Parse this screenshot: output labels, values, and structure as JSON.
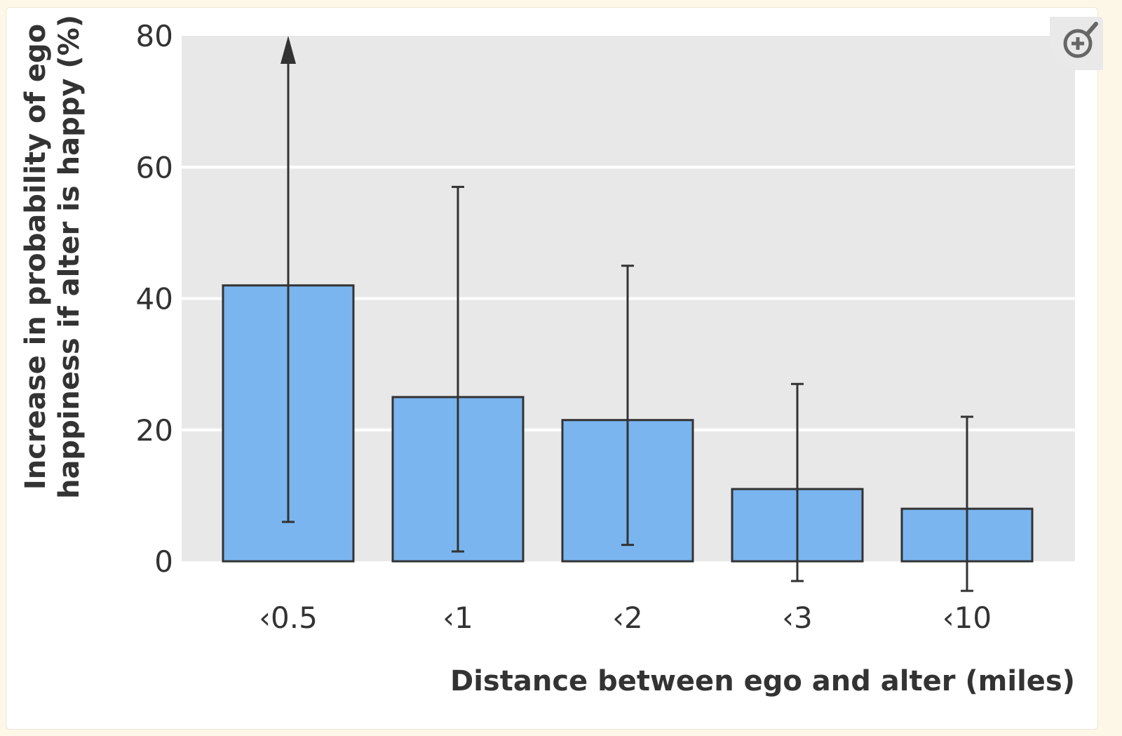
{
  "chart_data": {
    "type": "bar",
    "categories": [
      "‹0.5",
      "‹1",
      "‹2",
      "‹3",
      "‹10"
    ],
    "values": [
      42,
      25,
      21.5,
      11,
      8
    ],
    "error_low": [
      6,
      1.5,
      2.5,
      -3,
      -4.5
    ],
    "error_high": [
      80,
      57,
      45,
      27,
      22
    ],
    "error_truncated_above": [
      true,
      false,
      false,
      false,
      false
    ],
    "ylabel_line1": "Increase in probability of ego",
    "ylabel_line2": "happiness if alter is happy (%)",
    "xlabel": "Distance between ego and alter (miles)",
    "ylim": [
      0,
      80
    ],
    "yticks": [
      0,
      20,
      40,
      60,
      80
    ],
    "grid": true,
    "colors": {
      "bar": "#7ab5ef",
      "bar_edge": "#333333",
      "plot_bg": "#e8e8e8",
      "gridline": "#ffffff",
      "error": "#333333"
    }
  },
  "zoom_icon": "zoom-in-icon"
}
